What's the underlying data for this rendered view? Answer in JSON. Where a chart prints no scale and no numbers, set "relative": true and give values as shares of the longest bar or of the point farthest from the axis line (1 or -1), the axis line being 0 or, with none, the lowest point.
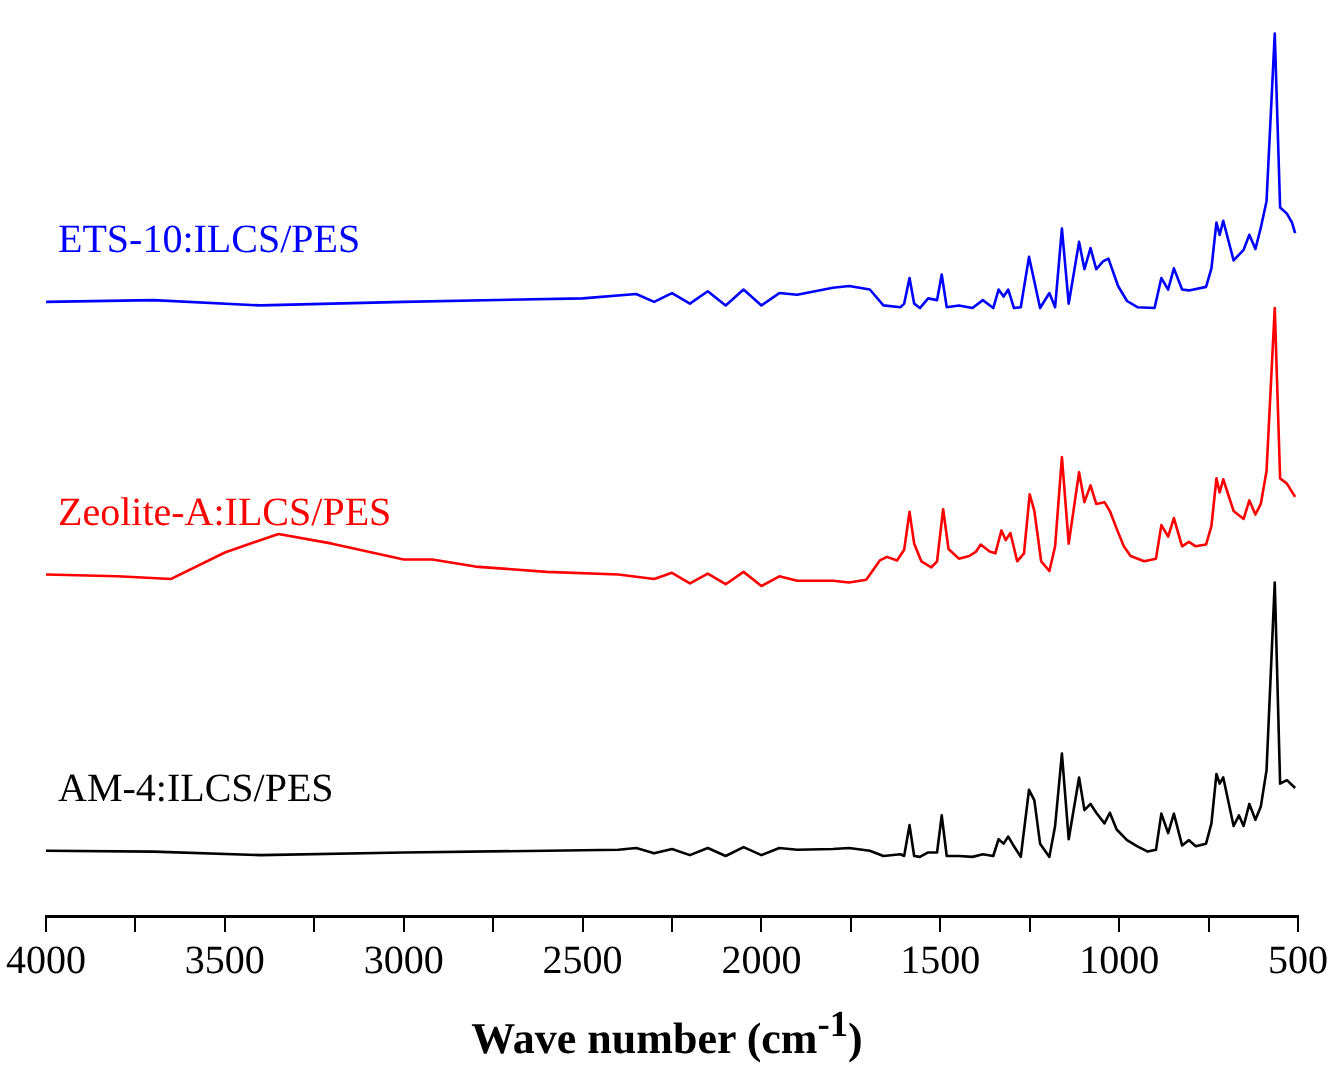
{
  "chart_data": {
    "type": "line",
    "relative": true,
    "xlabel": "Wave number (cm$^{-1}$)",
    "xlim": [
      4000,
      500
    ],
    "xticks": [
      4000,
      {
        "value": 3750,
        "label": null
      },
      3500,
      {
        "value": 3250,
        "label": null
      },
      3000,
      {
        "value": 2750,
        "label": null
      },
      2500,
      {
        "value": 2250,
        "label": null
      },
      2000,
      {
        "value": 1750,
        "label": null
      },
      1500,
      {
        "value": 1250,
        "label": null
      },
      1000,
      {
        "value": 750,
        "label": null
      },
      500
    ],
    "grid": false,
    "legend": false,
    "series": [
      {
        "name": "ETS-10:ILCS/PES",
        "color": "#0000ff",
        "x": [
          4000,
          3700,
          3400,
          3000,
          2500,
          2350,
          2300,
          2250,
          2200,
          2150,
          2100,
          2050,
          2000,
          1950,
          1900,
          1800,
          1755,
          1697,
          1659,
          1611,
          1601,
          1586,
          1573,
          1557,
          1534,
          1509,
          1496,
          1482,
          1448,
          1410,
          1381,
          1352,
          1337,
          1323,
          1310,
          1294,
          1275,
          1252,
          1237,
          1221,
          1195,
          1179,
          1160,
          1141,
          1112,
          1097,
          1080,
          1064,
          1045,
          1030,
          1016,
          1003,
          978,
          949,
          901,
          882,
          863,
          847,
          824,
          805,
          757,
          742,
          728,
          719,
          709,
          680,
          652,
          636,
          619,
          604,
          588,
          565,
          550,
          531,
          517,
          508
        ],
        "values": [
          0.696,
          0.698,
          0.692,
          0.696,
          0.7,
          0.705,
          0.696,
          0.706,
          0.694,
          0.708,
          0.692,
          0.71,
          0.692,
          0.706,
          0.704,
          0.712,
          0.714,
          0.71,
          0.692,
          0.69,
          0.694,
          0.723,
          0.694,
          0.689,
          0.7,
          0.698,
          0.727,
          0.69,
          0.692,
          0.689,
          0.698,
          0.689,
          0.71,
          0.702,
          0.71,
          0.689,
          0.69,
          0.747,
          0.719,
          0.689,
          0.706,
          0.69,
          0.779,
          0.694,
          0.764,
          0.733,
          0.757,
          0.733,
          0.742,
          0.745,
          0.729,
          0.714,
          0.697,
          0.69,
          0.689,
          0.723,
          0.71,
          0.734,
          0.71,
          0.709,
          0.713,
          0.734,
          0.786,
          0.772,
          0.788,
          0.743,
          0.755,
          0.772,
          0.756,
          0.78,
          0.81,
          1.0,
          0.803,
          0.796,
          0.786,
          0.774
        ]
      },
      {
        "name": "Zeolite-A:ILCS/PES",
        "color": "#ff0000",
        "x": [
          4000,
          3800,
          3650,
          3500,
          3350,
          3200,
          3000,
          2920,
          2800,
          2600,
          2400,
          2300,
          2250,
          2200,
          2150,
          2100,
          2050,
          2000,
          1950,
          1900,
          1800,
          1755,
          1707,
          1669,
          1649,
          1621,
          1601,
          1586,
          1573,
          1553,
          1525,
          1509,
          1492,
          1477,
          1448,
          1419,
          1400,
          1387,
          1362,
          1346,
          1329,
          1317,
          1304,
          1285,
          1266,
          1250,
          1237,
          1218,
          1195,
          1179,
          1160,
          1141,
          1112,
          1097,
          1080,
          1064,
          1041,
          1026,
          1007,
          987,
          968,
          930,
          897,
          882,
          863,
          847,
          824,
          805,
          786,
          757,
          742,
          728,
          719,
          709,
          680,
          652,
          636,
          619,
          604,
          588,
          565,
          550,
          531,
          508
        ],
        "values": [
          0.387,
          0.385,
          0.382,
          0.412,
          0.433,
          0.422,
          0.404,
          0.404,
          0.396,
          0.39,
          0.387,
          0.382,
          0.389,
          0.377,
          0.388,
          0.376,
          0.39,
          0.374,
          0.385,
          0.38,
          0.38,
          0.378,
          0.381,
          0.403,
          0.407,
          0.403,
          0.415,
          0.458,
          0.422,
          0.402,
          0.395,
          0.402,
          0.461,
          0.416,
          0.405,
          0.408,
          0.413,
          0.421,
          0.413,
          0.411,
          0.437,
          0.426,
          0.434,
          0.402,
          0.411,
          0.478,
          0.459,
          0.402,
          0.391,
          0.419,
          0.52,
          0.422,
          0.503,
          0.469,
          0.488,
          0.467,
          0.469,
          0.459,
          0.439,
          0.419,
          0.408,
          0.402,
          0.405,
          0.443,
          0.43,
          0.451,
          0.419,
          0.424,
          0.419,
          0.421,
          0.442,
          0.496,
          0.48,
          0.495,
          0.459,
          0.45,
          0.471,
          0.455,
          0.467,
          0.504,
          0.689,
          0.496,
          0.49,
          0.475
        ]
      },
      {
        "name": "AM-4:ILCS/PES",
        "color": "#000000",
        "x": [
          4000,
          3700,
          3400,
          3000,
          2600,
          2400,
          2350,
          2300,
          2250,
          2200,
          2150,
          2100,
          2050,
          2000,
          1950,
          1900,
          1800,
          1755,
          1697,
          1659,
          1611,
          1601,
          1586,
          1573,
          1557,
          1534,
          1509,
          1496,
          1482,
          1448,
          1410,
          1381,
          1352,
          1337,
          1323,
          1310,
          1294,
          1275,
          1252,
          1237,
          1221,
          1195,
          1179,
          1160,
          1141,
          1112,
          1097,
          1080,
          1064,
          1041,
          1026,
          1007,
          978,
          949,
          920,
          897,
          882,
          863,
          847,
          824,
          805,
          786,
          757,
          742,
          728,
          719,
          709,
          680,
          665,
          652,
          636,
          619,
          604,
          588,
          565,
          550,
          531,
          508
        ],
        "values": [
          0.074,
          0.073,
          0.069,
          0.072,
          0.074,
          0.075,
          0.077,
          0.071,
          0.076,
          0.069,
          0.077,
          0.068,
          0.078,
          0.069,
          0.077,
          0.075,
          0.076,
          0.077,
          0.074,
          0.068,
          0.07,
          0.068,
          0.103,
          0.068,
          0.067,
          0.072,
          0.072,
          0.114,
          0.068,
          0.068,
          0.067,
          0.07,
          0.068,
          0.087,
          0.082,
          0.09,
          0.079,
          0.067,
          0.143,
          0.131,
          0.082,
          0.067,
          0.102,
          0.184,
          0.087,
          0.157,
          0.12,
          0.127,
          0.117,
          0.105,
          0.117,
          0.098,
          0.086,
          0.079,
          0.073,
          0.075,
          0.116,
          0.094,
          0.116,
          0.08,
          0.086,
          0.079,
          0.082,
          0.105,
          0.161,
          0.15,
          0.157,
          0.102,
          0.114,
          0.102,
          0.127,
          0.109,
          0.124,
          0.165,
          0.378,
          0.15,
          0.154,
          0.145
        ]
      }
    ]
  }
}
